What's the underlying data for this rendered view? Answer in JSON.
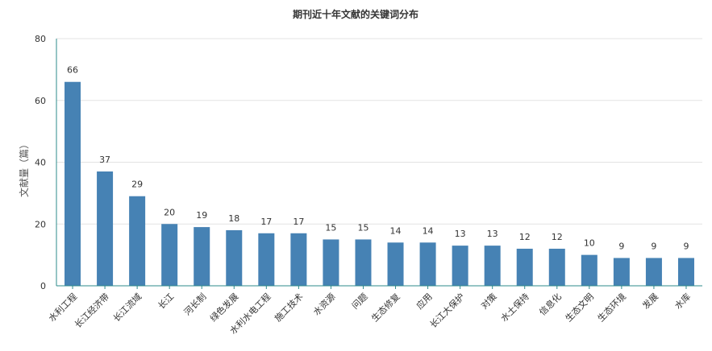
{
  "chart_data": {
    "type": "bar",
    "title": "期刊近十年文献的关键词分布",
    "xlabel": "",
    "ylabel": "文献量（篇）",
    "ylim": [
      0,
      80
    ],
    "yticks": [
      0,
      20,
      40,
      60,
      80
    ],
    "grid": true,
    "legend": "none",
    "bar_color": "#4682b4",
    "categories": [
      "水利工程",
      "长江经济带",
      "长江流域",
      "长江",
      "河长制",
      "绿色发展",
      "水利水电工程",
      "施工技术",
      "水资源",
      "问题",
      "生态修复",
      "应用",
      "长江大保护",
      "对策",
      "水土保持",
      "信息化",
      "生态文明",
      "生态环境",
      "发展",
      "水库"
    ],
    "values": [
      66,
      37,
      29,
      20,
      19,
      18,
      17,
      17,
      15,
      15,
      14,
      14,
      13,
      13,
      12,
      12,
      10,
      9,
      9,
      9
    ]
  }
}
